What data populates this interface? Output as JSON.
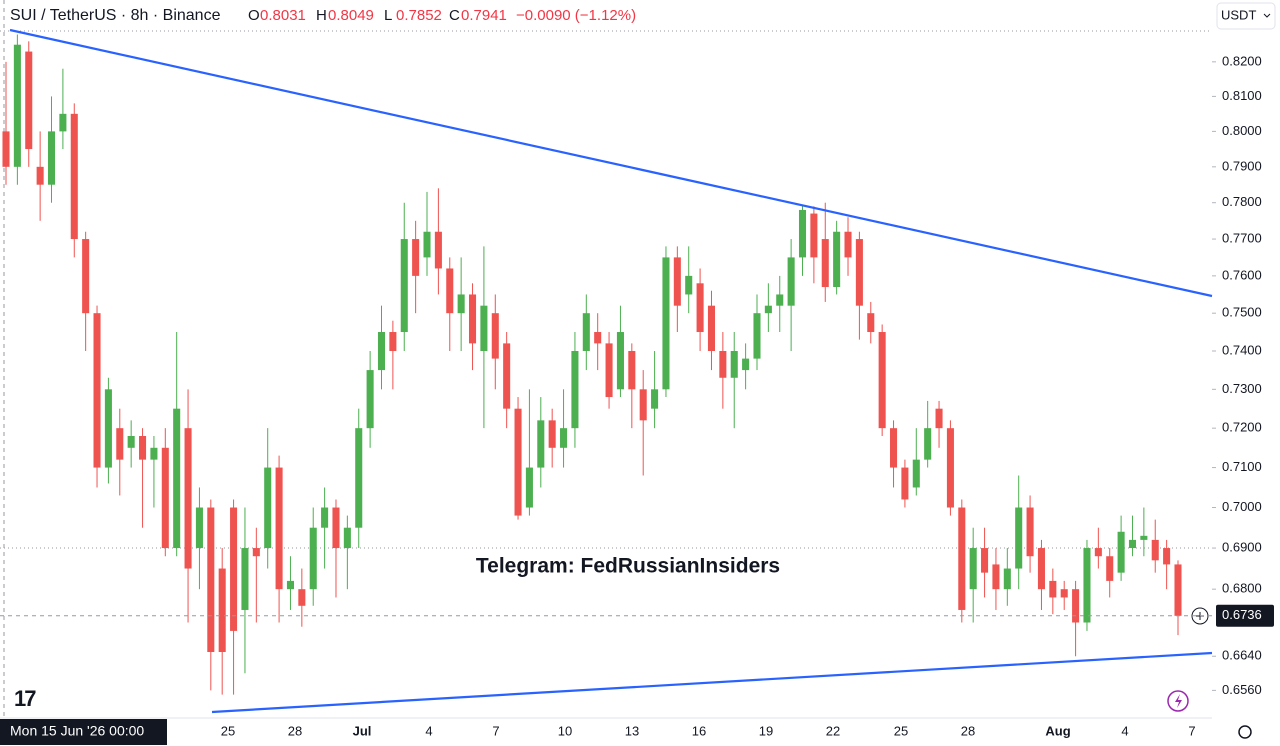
{
  "chart_data": {
    "type": "candlestick",
    "title": "SUI / TetherUS · 8h · Binance",
    "ohlc": [
      {
        "label": "O",
        "value": "0.8031"
      },
      {
        "label": "H",
        "value": "0.8049"
      },
      {
        "label": "L",
        "value": "0.7852"
      },
      {
        "label": "C",
        "value": "0.7941"
      }
    ],
    "change": "−0.0090 (−1.12%)",
    "currency": "USDT",
    "annotation": "Telegram: FedRussianInsiders",
    "crosshair_label": "Mon 15 Jun '26 00:00",
    "last_price": {
      "value": 0.6736,
      "label": "0.6736"
    },
    "log_scale": true,
    "up_color": "#4caf50",
    "down_color": "#ef5350",
    "ylim": [
      0.6496,
      0.8382
    ],
    "yticks": [
      {
        "value": 0.82,
        "label": "0.8200"
      },
      {
        "value": 0.81,
        "label": "0.8100"
      },
      {
        "value": 0.8,
        "label": "0.8000"
      },
      {
        "value": 0.79,
        "label": "0.7900"
      },
      {
        "value": 0.78,
        "label": "0.7800"
      },
      {
        "value": 0.77,
        "label": "0.7700"
      },
      {
        "value": 0.76,
        "label": "0.7600"
      },
      {
        "value": 0.75,
        "label": "0.7500"
      },
      {
        "value": 0.74,
        "label": "0.7400"
      },
      {
        "value": 0.73,
        "label": "0.7300"
      },
      {
        "value": 0.72,
        "label": "0.7200"
      },
      {
        "value": 0.71,
        "label": "0.7100"
      },
      {
        "value": 0.7,
        "label": "0.7000"
      },
      {
        "value": 0.69,
        "label": "0.6900"
      },
      {
        "value": 0.68,
        "label": "0.6800"
      },
      {
        "value": 0.664,
        "label": "0.6640"
      },
      {
        "value": 0.656,
        "label": "0.6560"
      }
    ],
    "xticks": [
      "25",
      "28",
      "Jul",
      "4",
      "7",
      "10",
      "13",
      "16",
      "19",
      "22",
      "25",
      "28",
      "Aug",
      "4",
      "7"
    ],
    "open": [
      0.8,
      0.79,
      0.823,
      0.79,
      0.785,
      0.8,
      0.805,
      0.77,
      0.75,
      0.71,
      0.72,
      0.715,
      0.718,
      0.712,
      0.715,
      0.69,
      0.72,
      0.69,
      0.7,
      0.685,
      0.7,
      0.675,
      0.69,
      0.69,
      0.71,
      0.68,
      0.68,
      0.68,
      0.695,
      0.7,
      0.69,
      0.695,
      0.72,
      0.735,
      0.745,
      0.745,
      0.77,
      0.765,
      0.772,
      0.762,
      0.75,
      0.755,
      0.74,
      0.75,
      0.742,
      0.725,
      0.7,
      0.71,
      0.722,
      0.715,
      0.72,
      0.74,
      0.745,
      0.742,
      0.73,
      0.74,
      0.73,
      0.725,
      0.73,
      0.765,
      0.755,
      0.758,
      0.752,
      0.74,
      0.733,
      0.735,
      0.738,
      0.75,
      0.752,
      0.752,
      0.765,
      0.777,
      0.77,
      0.757,
      0.772,
      0.77,
      0.75,
      0.745,
      0.72,
      0.71,
      0.705,
      0.712,
      0.725,
      0.72,
      0.7,
      0.68,
      0.69,
      0.686,
      0.68,
      0.685,
      0.7,
      0.69,
      0.682,
      0.68,
      0.68,
      0.672,
      0.69,
      0.688,
      0.684,
      0.69,
      0.692,
      0.692,
      0.69,
      0.686
    ],
    "high": [
      0.82,
      0.828,
      0.826,
      0.8,
      0.81,
      0.818,
      0.808,
      0.772,
      0.752,
      0.733,
      0.725,
      0.722,
      0.72,
      0.718,
      0.72,
      0.745,
      0.73,
      0.705,
      0.702,
      0.69,
      0.702,
      0.7,
      0.695,
      0.72,
      0.713,
      0.688,
      0.685,
      0.7,
      0.705,
      0.702,
      0.698,
      0.725,
      0.74,
      0.752,
      0.748,
      0.78,
      0.775,
      0.783,
      0.784,
      0.765,
      0.765,
      0.758,
      0.768,
      0.755,
      0.745,
      0.728,
      0.73,
      0.728,
      0.725,
      0.73,
      0.745,
      0.755,
      0.75,
      0.745,
      0.752,
      0.742,
      0.735,
      0.74,
      0.768,
      0.768,
      0.768,
      0.762,
      0.756,
      0.745,
      0.745,
      0.742,
      0.755,
      0.758,
      0.76,
      0.77,
      0.779,
      0.779,
      0.78,
      0.775,
      0.776,
      0.772,
      0.753,
      0.747,
      0.722,
      0.712,
      0.72,
      0.727,
      0.727,
      0.722,
      0.702,
      0.695,
      0.695,
      0.69,
      0.69,
      0.708,
      0.703,
      0.692,
      0.685,
      0.682,
      0.682,
      0.692,
      0.695,
      0.69,
      0.698,
      0.698,
      0.7,
      0.697,
      0.692,
      0.687
    ],
    "low": [
      0.785,
      0.785,
      0.79,
      0.775,
      0.78,
      0.795,
      0.765,
      0.74,
      0.705,
      0.706,
      0.703,
      0.71,
      0.695,
      0.7,
      0.688,
      0.688,
      0.672,
      0.68,
      0.656,
      0.655,
      0.655,
      0.66,
      0.672,
      0.685,
      0.672,
      0.675,
      0.671,
      0.676,
      0.685,
      0.678,
      0.68,
      0.69,
      0.715,
      0.73,
      0.73,
      0.74,
      0.75,
      0.76,
      0.755,
      0.74,
      0.74,
      0.735,
      0.72,
      0.73,
      0.72,
      0.697,
      0.698,
      0.705,
      0.71,
      0.71,
      0.715,
      0.735,
      0.735,
      0.725,
      0.728,
      0.72,
      0.708,
      0.72,
      0.728,
      0.745,
      0.75,
      0.74,
      0.735,
      0.725,
      0.72,
      0.73,
      0.735,
      0.745,
      0.745,
      0.74,
      0.76,
      0.758,
      0.753,
      0.755,
      0.76,
      0.743,
      0.742,
      0.718,
      0.705,
      0.7,
      0.703,
      0.71,
      0.715,
      0.698,
      0.672,
      0.672,
      0.678,
      0.675,
      0.676,
      0.68,
      0.684,
      0.675,
      0.674,
      0.675,
      0.664,
      0.67,
      0.685,
      0.678,
      0.682,
      0.688,
      0.688,
      0.684,
      0.68,
      0.669
    ],
    "close": [
      0.79,
      0.825,
      0.795,
      0.785,
      0.8,
      0.805,
      0.77,
      0.75,
      0.71,
      0.73,
      0.712,
      0.718,
      0.712,
      0.715,
      0.69,
      0.725,
      0.685,
      0.7,
      0.665,
      0.665,
      0.67,
      0.69,
      0.688,
      0.71,
      0.68,
      0.682,
      0.676,
      0.695,
      0.7,
      0.69,
      0.695,
      0.72,
      0.735,
      0.745,
      0.74,
      0.77,
      0.76,
      0.772,
      0.762,
      0.75,
      0.755,
      0.742,
      0.752,
      0.738,
      0.725,
      0.698,
      0.71,
      0.722,
      0.715,
      0.72,
      0.74,
      0.75,
      0.742,
      0.728,
      0.745,
      0.73,
      0.722,
      0.73,
      0.765,
      0.752,
      0.76,
      0.745,
      0.74,
      0.733,
      0.74,
      0.738,
      0.75,
      0.752,
      0.755,
      0.765,
      0.778,
      0.765,
      0.757,
      0.772,
      0.765,
      0.752,
      0.745,
      0.72,
      0.71,
      0.702,
      0.712,
      0.72,
      0.72,
      0.7,
      0.675,
      0.69,
      0.684,
      0.68,
      0.685,
      0.7,
      0.688,
      0.68,
      0.678,
      0.678,
      0.672,
      0.69,
      0.688,
      0.682,
      0.694,
      0.692,
      0.693,
      0.687,
      0.686,
      0.6736
    ]
  }
}
